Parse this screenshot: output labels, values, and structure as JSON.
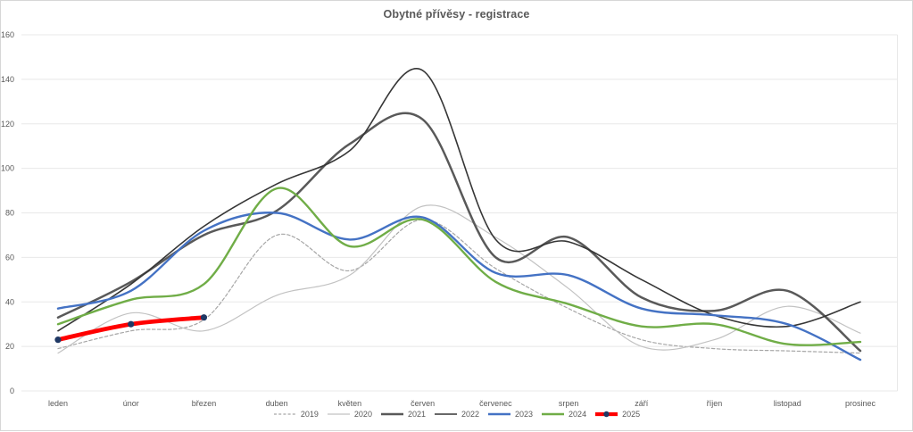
{
  "chart_data": {
    "type": "line",
    "title": "Obytné přívěsy - registrace",
    "categories": [
      "leden",
      "únor",
      "březen",
      "duben",
      "květen",
      "červen",
      "červenec",
      "srpen",
      "září",
      "říjen",
      "listopad",
      "prosinec"
    ],
    "y_axis": {
      "min": 0,
      "max": 160,
      "step": 20,
      "tick_labels": [
        "0",
        "20",
        "40",
        "60",
        "80",
        "100",
        "120",
        "140",
        "160"
      ]
    },
    "x_axis_label": "",
    "ylabel": "",
    "grid": "horizontal-only",
    "legend_position": "bottom-center",
    "colors": {
      "grid": "#e8e8e8",
      "axis_text": "#595959",
      "title_text": "#595959",
      "frame_border": "#d7d7d7",
      "marker_2025": "#1f3864"
    },
    "series": [
      {
        "name": "2019",
        "color": "#a6a6a6",
        "line_style": "dashed",
        "line_width": 1.2,
        "smooth": true,
        "values": [
          19,
          27,
          32,
          70,
          54,
          77,
          55,
          37,
          23,
          19,
          18,
          17
        ]
      },
      {
        "name": "2020",
        "color": "#c2c2c2",
        "line_style": "solid",
        "line_width": 1.2,
        "smooth": true,
        "values": [
          17,
          35,
          27,
          43,
          52,
          83,
          69,
          46,
          20,
          23,
          38,
          26
        ]
      },
      {
        "name": "2021",
        "color": "#595959",
        "line_style": "solid",
        "line_width": 2.5,
        "smooth": true,
        "values": [
          33,
          49,
          70,
          81,
          111,
          122,
          60,
          69,
          42,
          36,
          45,
          18
        ]
      },
      {
        "name": "2022",
        "color": "#363636",
        "line_style": "solid",
        "line_width": 1.6,
        "smooth": true,
        "values": [
          27,
          48,
          74,
          93,
          108,
          144,
          68,
          67,
          50,
          34,
          29,
          40
        ]
      },
      {
        "name": "2023",
        "color": "#4472c4",
        "line_style": "solid",
        "line_width": 2.4,
        "smooth": true,
        "values": [
          37,
          45,
          72,
          80,
          68,
          78,
          53,
          52,
          37,
          34,
          30,
          14
        ]
      },
      {
        "name": "2024",
        "color": "#70ad47",
        "line_style": "solid",
        "line_width": 2.4,
        "smooth": true,
        "values": [
          30,
          41,
          48,
          91,
          65,
          77,
          49,
          39,
          29,
          30,
          21,
          22
        ]
      },
      {
        "name": "2025",
        "color": "#ff0000",
        "line_style": "solid",
        "line_width": 4.8,
        "smooth": true,
        "marker": {
          "shape": "circle",
          "color": "#1f3864",
          "radius": 3.6
        },
        "values": [
          23,
          30,
          33
        ]
      }
    ]
  }
}
